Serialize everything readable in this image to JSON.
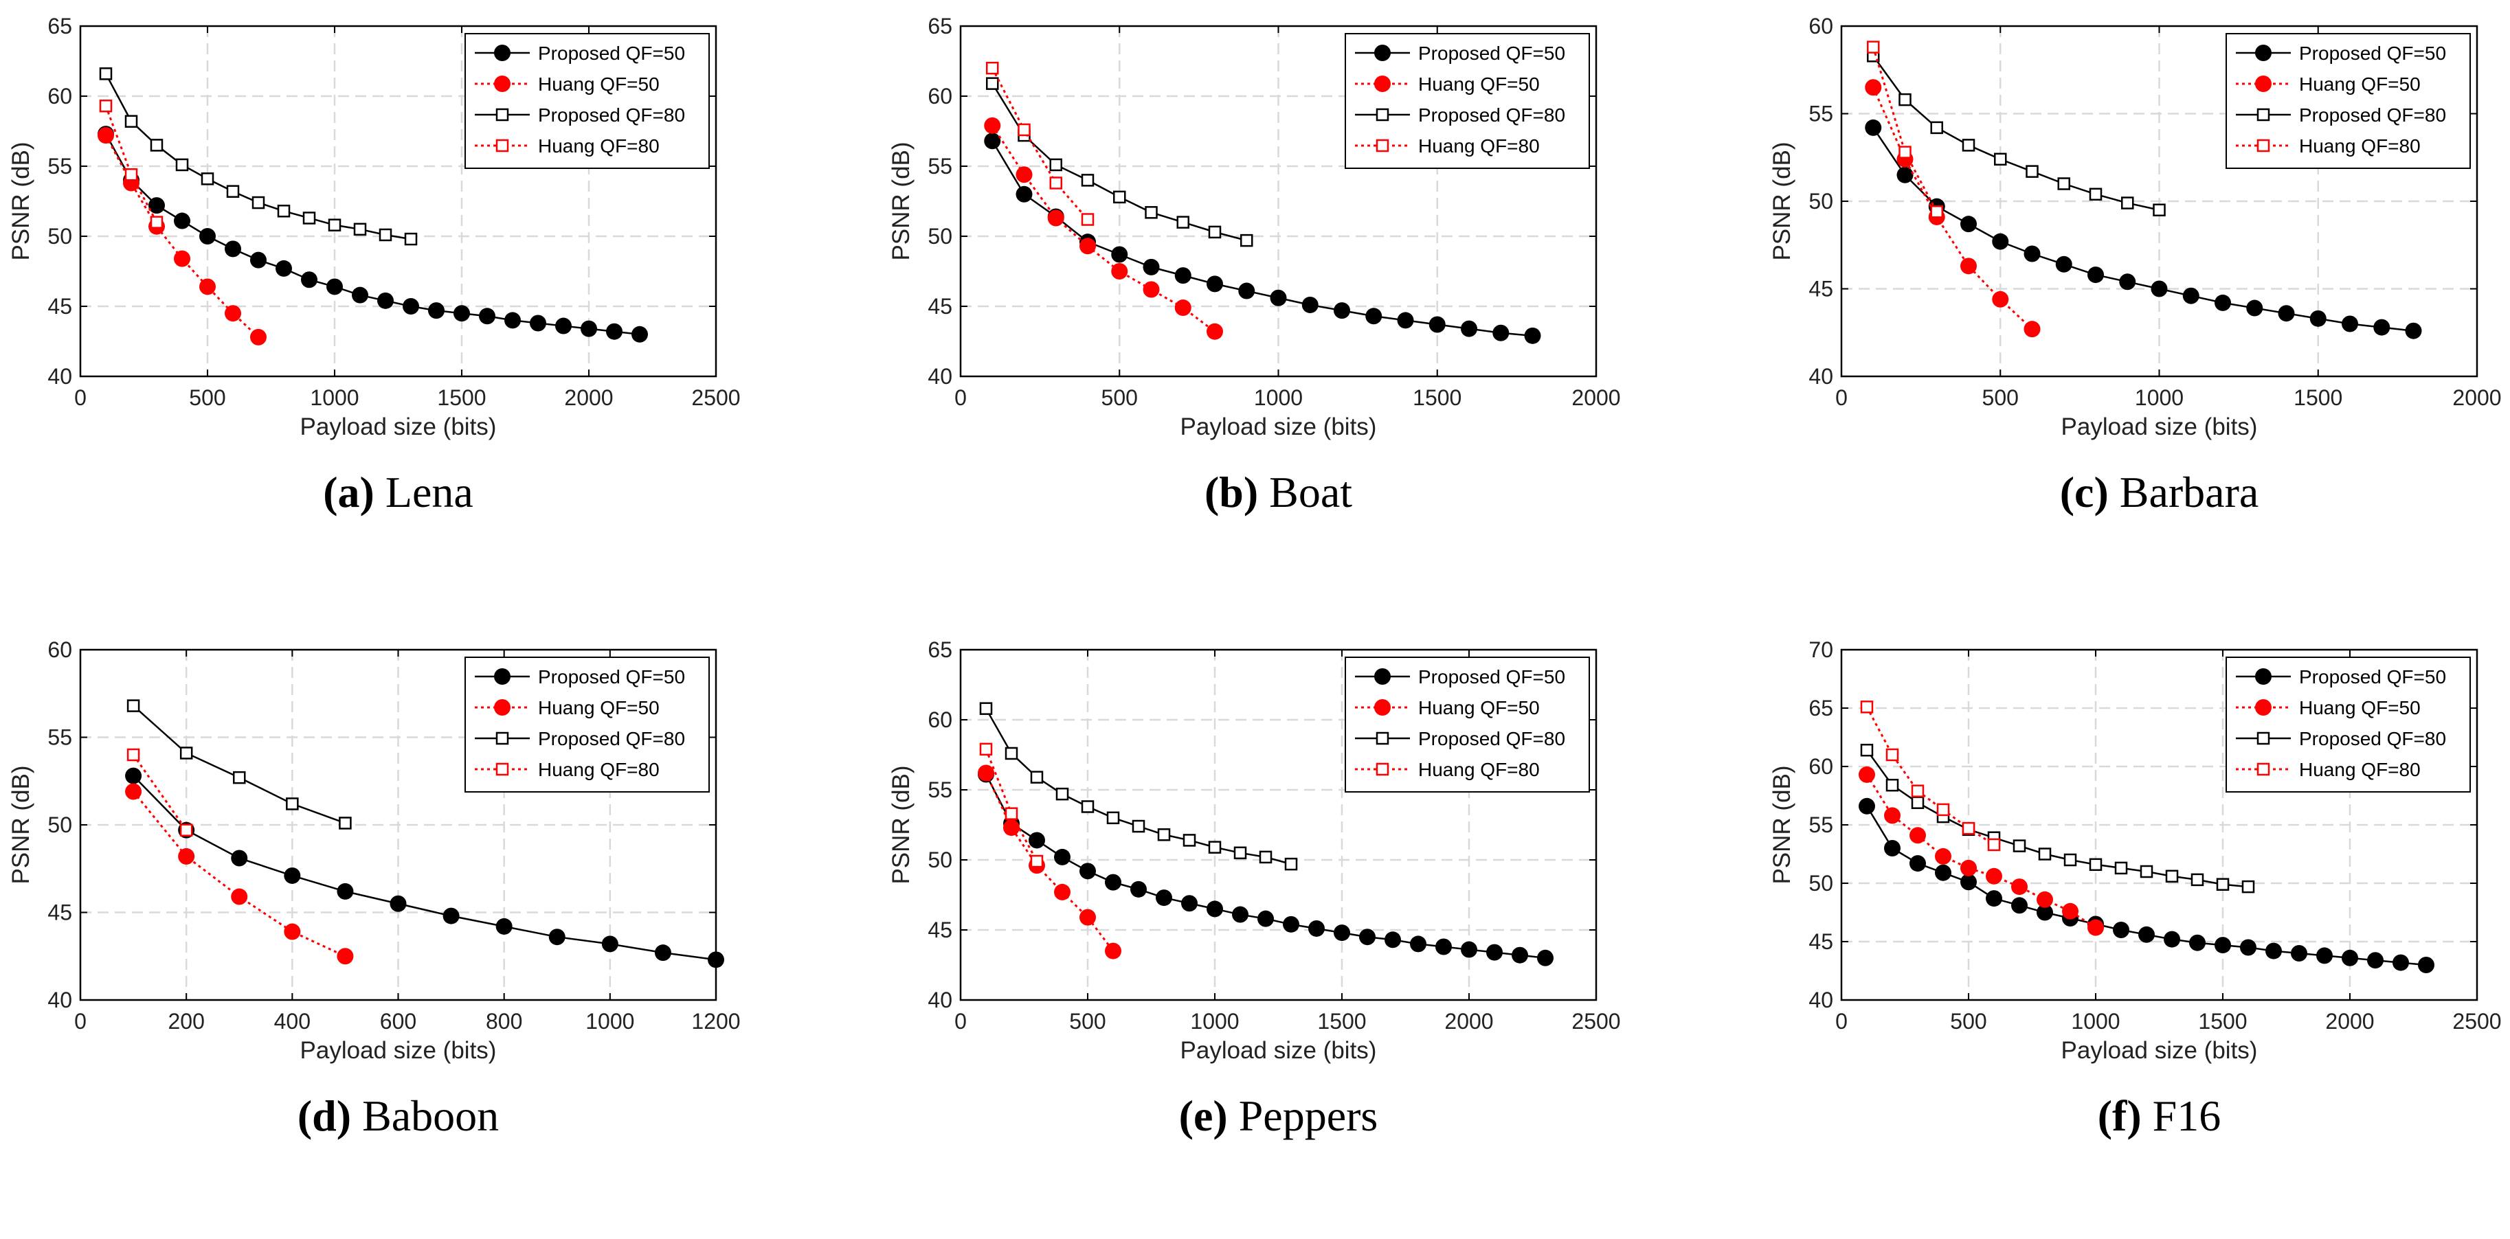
{
  "figure": {
    "colors": {
      "proposed": "#000000",
      "huang": "#ff0000",
      "grid": "#d9d9d9",
      "frame": "#000000"
    },
    "legend_labels": [
      "Proposed QF=50",
      "Huang QF=50",
      "Proposed QF=80",
      "Huang QF=80"
    ]
  },
  "chart_data": [
    {
      "type": "line",
      "caption_letter": "(a)",
      "caption_name": "Lena",
      "xlabel": "Payload size (bits)",
      "ylabel": "PSNR (dB)",
      "xlim": [
        0,
        2500
      ],
      "ylim": [
        40,
        65
      ],
      "xticks": [
        0,
        500,
        1000,
        1500,
        2000,
        2500
      ],
      "yticks": [
        40,
        45,
        50,
        55,
        60,
        65
      ],
      "grid": true,
      "legend": "top-right",
      "series": [
        {
          "name": "Proposed QF=50",
          "color": "#000000",
          "marker": "filled-circle",
          "line": "solid",
          "x": [
            100,
            200,
            300,
            400,
            500,
            600,
            700,
            800,
            900,
            1000,
            1100,
            1200,
            1300,
            1400,
            1500,
            1600,
            1700,
            1800,
            1900,
            2000,
            2100,
            2200
          ],
          "y": [
            57.3,
            54.0,
            52.2,
            51.1,
            50.0,
            49.1,
            48.3,
            47.7,
            46.9,
            46.4,
            45.8,
            45.4,
            45.0,
            44.7,
            44.5,
            44.3,
            44.0,
            43.8,
            43.6,
            43.4,
            43.2,
            43.0
          ]
        },
        {
          "name": "Huang QF=50",
          "color": "#ff0000",
          "marker": "filled-circle",
          "line": "dotted",
          "x": [
            100,
            200,
            300,
            400,
            500,
            600,
            700
          ],
          "y": [
            57.2,
            53.8,
            50.7,
            48.4,
            46.4,
            44.5,
            42.8
          ]
        },
        {
          "name": "Proposed QF=80",
          "color": "#000000",
          "marker": "open-square",
          "line": "solid",
          "x": [
            100,
            200,
            300,
            400,
            500,
            600,
            700,
            800,
            900,
            1000,
            1100,
            1200,
            1300
          ],
          "y": [
            61.6,
            58.2,
            56.5,
            55.1,
            54.1,
            53.2,
            52.4,
            51.8,
            51.3,
            50.8,
            50.5,
            50.1,
            49.8
          ]
        },
        {
          "name": "Huang QF=80",
          "color": "#ff0000",
          "marker": "open-square",
          "line": "dotted",
          "x": [
            100,
            200,
            300
          ],
          "y": [
            59.3,
            54.4,
            51.0
          ]
        }
      ]
    },
    {
      "type": "line",
      "caption_letter": "(b)",
      "caption_name": "Boat",
      "xlabel": "Payload size (bits)",
      "ylabel": "PSNR (dB)",
      "xlim": [
        0,
        2000
      ],
      "ylim": [
        40,
        65
      ],
      "xticks": [
        0,
        500,
        1000,
        1500,
        2000
      ],
      "yticks": [
        40,
        45,
        50,
        55,
        60,
        65
      ],
      "grid": true,
      "legend": "top-right",
      "series": [
        {
          "name": "Proposed QF=50",
          "color": "#000000",
          "marker": "filled-circle",
          "line": "solid",
          "x": [
            100,
            200,
            300,
            400,
            500,
            600,
            700,
            800,
            900,
            1000,
            1100,
            1200,
            1300,
            1400,
            1500,
            1600,
            1700,
            1800
          ],
          "y": [
            56.8,
            53.0,
            51.4,
            49.6,
            48.7,
            47.8,
            47.2,
            46.6,
            46.1,
            45.6,
            45.1,
            44.7,
            44.3,
            44.0,
            43.7,
            43.4,
            43.1,
            42.9
          ]
        },
        {
          "name": "Huang QF=50",
          "color": "#ff0000",
          "marker": "filled-circle",
          "line": "dotted",
          "x": [
            100,
            200,
            300,
            400,
            500,
            600,
            700,
            800
          ],
          "y": [
            57.9,
            54.4,
            51.3,
            49.3,
            47.5,
            46.2,
            44.9,
            43.2
          ]
        },
        {
          "name": "Proposed QF=80",
          "color": "#000000",
          "marker": "open-square",
          "line": "solid",
          "x": [
            100,
            200,
            300,
            400,
            500,
            600,
            700,
            800,
            900
          ],
          "y": [
            60.9,
            57.2,
            55.1,
            54.0,
            52.8,
            51.7,
            51.0,
            50.3,
            49.7
          ]
        },
        {
          "name": "Huang QF=80",
          "color": "#ff0000",
          "marker": "open-square",
          "line": "dotted",
          "x": [
            100,
            200,
            300,
            400
          ],
          "y": [
            62.0,
            57.6,
            53.8,
            51.2
          ]
        }
      ]
    },
    {
      "type": "line",
      "caption_letter": "(c)",
      "caption_name": "Barbara",
      "xlabel": "Payload size (bits)",
      "ylabel": "PSNR (dB)",
      "xlim": [
        0,
        2000
      ],
      "ylim": [
        40,
        60
      ],
      "xticks": [
        0,
        500,
        1000,
        1500,
        2000
      ],
      "yticks": [
        40,
        45,
        50,
        55,
        60
      ],
      "grid": true,
      "legend": "top-right",
      "series": [
        {
          "name": "Proposed QF=50",
          "color": "#000000",
          "marker": "filled-circle",
          "line": "solid",
          "x": [
            100,
            200,
            300,
            400,
            500,
            600,
            700,
            800,
            900,
            1000,
            1100,
            1200,
            1300,
            1400,
            1500,
            1600,
            1700,
            1800
          ],
          "y": [
            54.2,
            51.5,
            49.7,
            48.7,
            47.7,
            47.0,
            46.4,
            45.8,
            45.4,
            45.0,
            44.6,
            44.2,
            43.9,
            43.6,
            43.3,
            43.0,
            42.8,
            42.6
          ]
        },
        {
          "name": "Huang QF=50",
          "color": "#ff0000",
          "marker": "filled-circle",
          "line": "dotted",
          "x": [
            100,
            200,
            300,
            400,
            500,
            600
          ],
          "y": [
            56.5,
            52.4,
            49.1,
            46.3,
            44.4,
            42.7
          ]
        },
        {
          "name": "Proposed QF=80",
          "color": "#000000",
          "marker": "open-square",
          "line": "solid",
          "x": [
            100,
            200,
            300,
            400,
            500,
            600,
            700,
            800,
            900,
            1000
          ],
          "y": [
            58.3,
            55.8,
            54.2,
            53.2,
            52.4,
            51.7,
            51.0,
            50.4,
            49.9,
            49.5
          ]
        },
        {
          "name": "Huang QF=80",
          "color": "#ff0000",
          "marker": "open-square",
          "line": "dotted",
          "x": [
            100,
            200,
            300
          ],
          "y": [
            58.8,
            52.8,
            49.4
          ]
        }
      ]
    },
    {
      "type": "line",
      "caption_letter": "(d)",
      "caption_name": "Baboon",
      "xlabel": "Payload size (bits)",
      "ylabel": "PSNR (dB)",
      "xlim": [
        0,
        1200
      ],
      "ylim": [
        40,
        60
      ],
      "xticks": [
        0,
        200,
        400,
        600,
        800,
        1000,
        1200
      ],
      "yticks": [
        40,
        45,
        50,
        55,
        60
      ],
      "grid": true,
      "legend": "top-right",
      "series": [
        {
          "name": "Proposed QF=50",
          "color": "#000000",
          "marker": "filled-circle",
          "line": "solid",
          "x": [
            100,
            200,
            300,
            400,
            500,
            600,
            700,
            800,
            900,
            1000,
            1100,
            1200
          ],
          "y": [
            52.8,
            49.7,
            48.1,
            47.1,
            46.2,
            45.5,
            44.8,
            44.2,
            43.6,
            43.2,
            42.7,
            42.3
          ]
        },
        {
          "name": "Huang QF=50",
          "color": "#ff0000",
          "marker": "filled-circle",
          "line": "dotted",
          "x": [
            100,
            200,
            300,
            400,
            500
          ],
          "y": [
            51.9,
            48.2,
            45.9,
            43.9,
            42.5
          ]
        },
        {
          "name": "Proposed QF=80",
          "color": "#000000",
          "marker": "open-square",
          "line": "solid",
          "x": [
            100,
            200,
            300,
            400,
            500
          ],
          "y": [
            56.8,
            54.1,
            52.7,
            51.2,
            50.1
          ]
        },
        {
          "name": "Huang QF=80",
          "color": "#ff0000",
          "marker": "open-square",
          "line": "dotted",
          "x": [
            100,
            200
          ],
          "y": [
            54.0,
            49.7
          ]
        }
      ]
    },
    {
      "type": "line",
      "caption_letter": "(e)",
      "caption_name": "Peppers",
      "xlabel": "Payload size (bits)",
      "ylabel": "PSNR (dB)",
      "xlim": [
        0,
        2500
      ],
      "ylim": [
        40,
        65
      ],
      "xticks": [
        0,
        500,
        1000,
        1500,
        2000,
        2500
      ],
      "yticks": [
        40,
        45,
        50,
        55,
        60,
        65
      ],
      "grid": true,
      "legend": "top-right",
      "series": [
        {
          "name": "Proposed QF=50",
          "color": "#000000",
          "marker": "filled-circle",
          "line": "solid",
          "x": [
            100,
            200,
            300,
            400,
            500,
            600,
            700,
            800,
            900,
            1000,
            1100,
            1200,
            1300,
            1400,
            1500,
            1600,
            1700,
            1800,
            1900,
            2000,
            2100,
            2200,
            2300
          ],
          "y": [
            56.1,
            52.6,
            51.4,
            50.2,
            49.2,
            48.4,
            47.9,
            47.3,
            46.9,
            46.5,
            46.1,
            45.8,
            45.4,
            45.1,
            44.8,
            44.5,
            44.3,
            44.0,
            43.8,
            43.6,
            43.4,
            43.2,
            43.0
          ]
        },
        {
          "name": "Huang QF=50",
          "color": "#ff0000",
          "marker": "filled-circle",
          "line": "dotted",
          "x": [
            100,
            200,
            300,
            400,
            500,
            600
          ],
          "y": [
            56.2,
            52.3,
            49.6,
            47.7,
            45.9,
            43.5
          ]
        },
        {
          "name": "Proposed QF=80",
          "color": "#000000",
          "marker": "open-square",
          "line": "solid",
          "x": [
            100,
            200,
            300,
            400,
            500,
            600,
            700,
            800,
            900,
            1000,
            1100,
            1200,
            1300
          ],
          "y": [
            60.8,
            57.6,
            55.9,
            54.7,
            53.8,
            53.0,
            52.4,
            51.8,
            51.4,
            50.9,
            50.5,
            50.2,
            49.7
          ]
        },
        {
          "name": "Huang QF=80",
          "color": "#ff0000",
          "marker": "open-square",
          "line": "dotted",
          "x": [
            100,
            200,
            300
          ],
          "y": [
            57.9,
            53.3,
            49.9
          ]
        }
      ]
    },
    {
      "type": "line",
      "caption_letter": "(f)",
      "caption_name": "F16",
      "xlabel": "Payload size (bits)",
      "ylabel": "PSNR (dB)",
      "xlim": [
        0,
        2500
      ],
      "ylim": [
        40,
        70
      ],
      "xticks": [
        0,
        500,
        1000,
        1500,
        2000,
        2500
      ],
      "yticks": [
        40,
        45,
        50,
        55,
        60,
        65,
        70
      ],
      "grid": true,
      "legend": "top-right",
      "series": [
        {
          "name": "Proposed QF=50",
          "color": "#000000",
          "marker": "filled-circle",
          "line": "solid",
          "x": [
            100,
            200,
            300,
            400,
            500,
            600,
            700,
            800,
            900,
            1000,
            1100,
            1200,
            1300,
            1400,
            1500,
            1600,
            1700,
            1800,
            1900,
            2000,
            2100,
            2200,
            2300
          ],
          "y": [
            56.6,
            53.0,
            51.7,
            50.9,
            50.1,
            48.7,
            48.1,
            47.5,
            47.0,
            46.5,
            46.0,
            45.6,
            45.2,
            44.9,
            44.7,
            44.5,
            44.2,
            44.0,
            43.8,
            43.6,
            43.4,
            43.2,
            43.0
          ]
        },
        {
          "name": "Huang QF=50",
          "color": "#ff0000",
          "marker": "filled-circle",
          "line": "dotted",
          "x": [
            100,
            200,
            300,
            400,
            500,
            600,
            700,
            800,
            900,
            1000
          ],
          "y": [
            59.3,
            55.8,
            54.1,
            52.3,
            51.3,
            50.6,
            49.7,
            48.6,
            47.6,
            46.2
          ]
        },
        {
          "name": "Proposed QF=80",
          "color": "#000000",
          "marker": "open-square",
          "line": "solid",
          "x": [
            100,
            200,
            300,
            400,
            500,
            600,
            700,
            800,
            900,
            1000,
            1100,
            1200,
            1300,
            1400,
            1500,
            1600
          ],
          "y": [
            61.4,
            58.4,
            56.9,
            55.7,
            54.6,
            53.9,
            53.2,
            52.5,
            52.0,
            51.6,
            51.3,
            51.0,
            50.6,
            50.3,
            49.9,
            49.7
          ]
        },
        {
          "name": "Huang QF=80",
          "color": "#ff0000",
          "marker": "open-square",
          "line": "dotted",
          "x": [
            100,
            200,
            300,
            400,
            500,
            600
          ],
          "y": [
            65.1,
            61.0,
            57.9,
            56.3,
            54.7,
            53.3
          ]
        }
      ]
    }
  ]
}
